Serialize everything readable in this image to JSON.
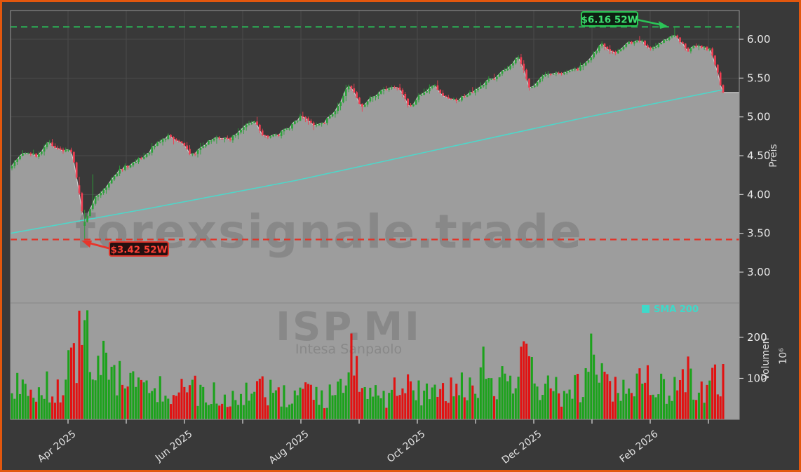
{
  "window": {
    "border_color": "#e2570e",
    "background": "#393939"
  },
  "watermarks": {
    "brand": "forexsignale.trade",
    "ticker": "ISP.MI",
    "company": "Intesa Sanpaolo"
  },
  "legend": {
    "sma_label": "SMA 200"
  },
  "annotations": {
    "high_label": "$6.16 52W",
    "low_label": "$3.42 52W"
  },
  "axes": {
    "price": {
      "title": "Preis",
      "tick_labels": [
        "6.00",
        "5.50",
        "5.00",
        "4.50",
        "4.00",
        "3.50",
        "3.00"
      ],
      "tick_values": [
        6.0,
        5.5,
        5.0,
        4.5,
        4.0,
        3.5,
        3.0
      ]
    },
    "volume": {
      "title": "Volumen",
      "unit": "10⁶",
      "tick_labels": [
        "200",
        "100"
      ],
      "tick_values": [
        200,
        100
      ]
    },
    "x": {
      "labels": [
        "Apr 2025",
        "Jun 2025",
        "Aug 2025",
        "Oct 2025",
        "Dec 2025",
        "Feb 2026"
      ]
    }
  },
  "chart_data": {
    "type": "candlestick",
    "symbol": "ISP.MI",
    "company": "Intesa Sanpaolo",
    "ylabel": "Preis",
    "y2label": "Volumen 10⁶",
    "x_tick_labels": [
      "Apr 2025",
      "Jun 2025",
      "Aug 2025",
      "Oct 2025",
      "Dec 2025",
      "Feb 2026"
    ],
    "x_range": [
      "Mar 2025",
      "Feb 2026"
    ],
    "price_axis_ticks": [
      6.0,
      5.5,
      5.0,
      4.5,
      4.0,
      3.5,
      3.0
    ],
    "volume_axis_ticks_millions": [
      200,
      100
    ],
    "high_52w": 6.16,
    "low_52w": 3.42,
    "weekly_closes": [
      4.38,
      4.55,
      4.5,
      4.66,
      4.58,
      4.55,
      3.62,
      3.98,
      4.12,
      4.32,
      4.4,
      4.5,
      4.65,
      4.76,
      4.66,
      4.5,
      4.66,
      4.72,
      4.7,
      4.85,
      4.95,
      4.74,
      4.76,
      4.86,
      5.02,
      4.88,
      4.94,
      5.12,
      5.42,
      5.14,
      5.26,
      5.36,
      5.38,
      5.12,
      5.3,
      5.4,
      5.26,
      5.22,
      5.3,
      5.42,
      5.5,
      5.62,
      5.78,
      5.36,
      5.52,
      5.55,
      5.56,
      5.62,
      5.78,
      5.94,
      5.82,
      5.94,
      6.0,
      5.88,
      5.98,
      6.06,
      5.86,
      5.92,
      5.86,
      5.3
    ],
    "weekly_volumes_millions": [
      75,
      85,
      70,
      90,
      80,
      140,
      265,
      180,
      120,
      95,
      85,
      70,
      90,
      80,
      70,
      75,
      65,
      60,
      55,
      70,
      65,
      80,
      60,
      55,
      70,
      60,
      55,
      65,
      160,
      90,
      70,
      60,
      75,
      85,
      70,
      65,
      60,
      80,
      70,
      130,
      80,
      90,
      120,
      140,
      75,
      70,
      65,
      80,
      150,
      90,
      80,
      70,
      90,
      100,
      80,
      90,
      110,
      75,
      85,
      135
    ],
    "sma200_points": [
      3.5,
      3.83,
      4.18,
      4.58,
      4.98,
      5.35
    ],
    "legend": {
      "position": "volume-pane-top-right",
      "entries": [
        "SMA 200"
      ]
    },
    "grid": true,
    "colors": {
      "up": "#2ba13a",
      "down": "#f03e52",
      "vol_up": "#1ca21c",
      "vol_down": "#e11212",
      "sma": "#4fd6c9",
      "area": "#9d9d9d",
      "area_edge": "#d2d2d2",
      "grid": "#4b4b4b",
      "spine": "#979797",
      "high_line": "#2bae54",
      "high_text": "#3fe071",
      "low_line": "#e0362b",
      "low_text": "#ff4136",
      "legend_text": "#3fd9c9",
      "watermark": "#787878"
    }
  }
}
